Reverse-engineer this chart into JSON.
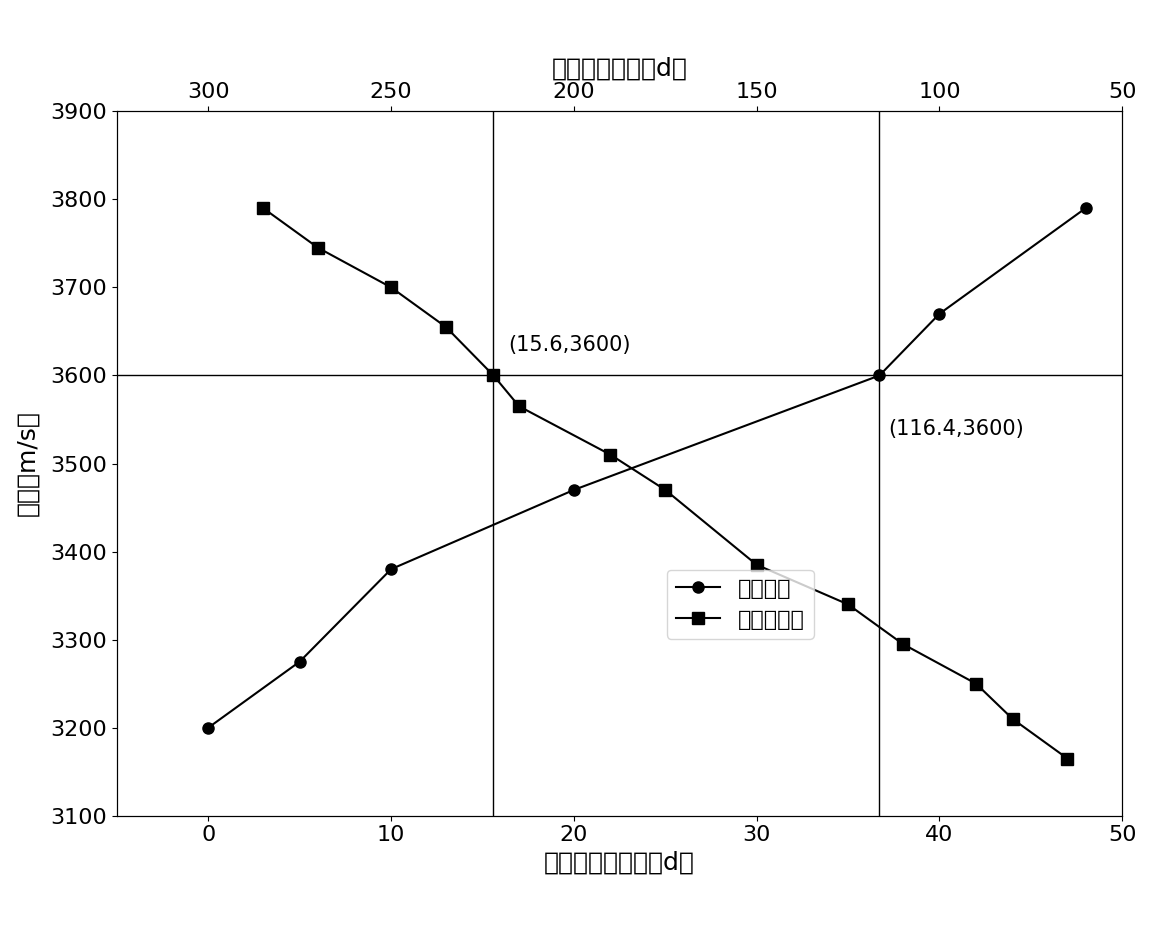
{
  "xlabel_bottom": "高低温循环天数（d）",
  "xlabel_top": "自然存储天数（d）",
  "ylabel": "爆速（m/s）",
  "legend_natural": "自然存储",
  "legend_cycle": "高低温循环",
  "annotation1_text": "(15.6,3600)",
  "annotation2_text": "(116.4,3600)",
  "ref_y": 3600,
  "ref_x_cycle": 15.6,
  "ref_x_natural_bot": 36.72,
  "xlim": [
    -5,
    50
  ],
  "ylim": [
    3100,
    3900
  ],
  "xticks_bottom": [
    0,
    10,
    20,
    30,
    40,
    50
  ],
  "xticks_top_labels": [
    "300",
    "250",
    "200",
    "150",
    "100",
    "50"
  ],
  "yticks": [
    3100,
    3200,
    3300,
    3400,
    3500,
    3600,
    3700,
    3800,
    3900
  ],
  "cycle_x": [
    3,
    6,
    10,
    13,
    15.6,
    17,
    22,
    25,
    30,
    35,
    38,
    42,
    44,
    47
  ],
  "cycle_y": [
    3790,
    3745,
    3700,
    3655,
    3600,
    3565,
    3510,
    3470,
    3385,
    3340,
    3295,
    3250,
    3210,
    3165
  ],
  "natural_bot_x": [
    0,
    5,
    10,
    20,
    36.72,
    40,
    48
  ],
  "natural_y": [
    3200,
    3275,
    3380,
    3470,
    3600,
    3670,
    3790
  ],
  "fontsize_label": 18,
  "fontsize_tick": 16,
  "fontsize_annot": 15,
  "fontsize_legend": 16,
  "line_width": 1.5,
  "marker_size": 8
}
